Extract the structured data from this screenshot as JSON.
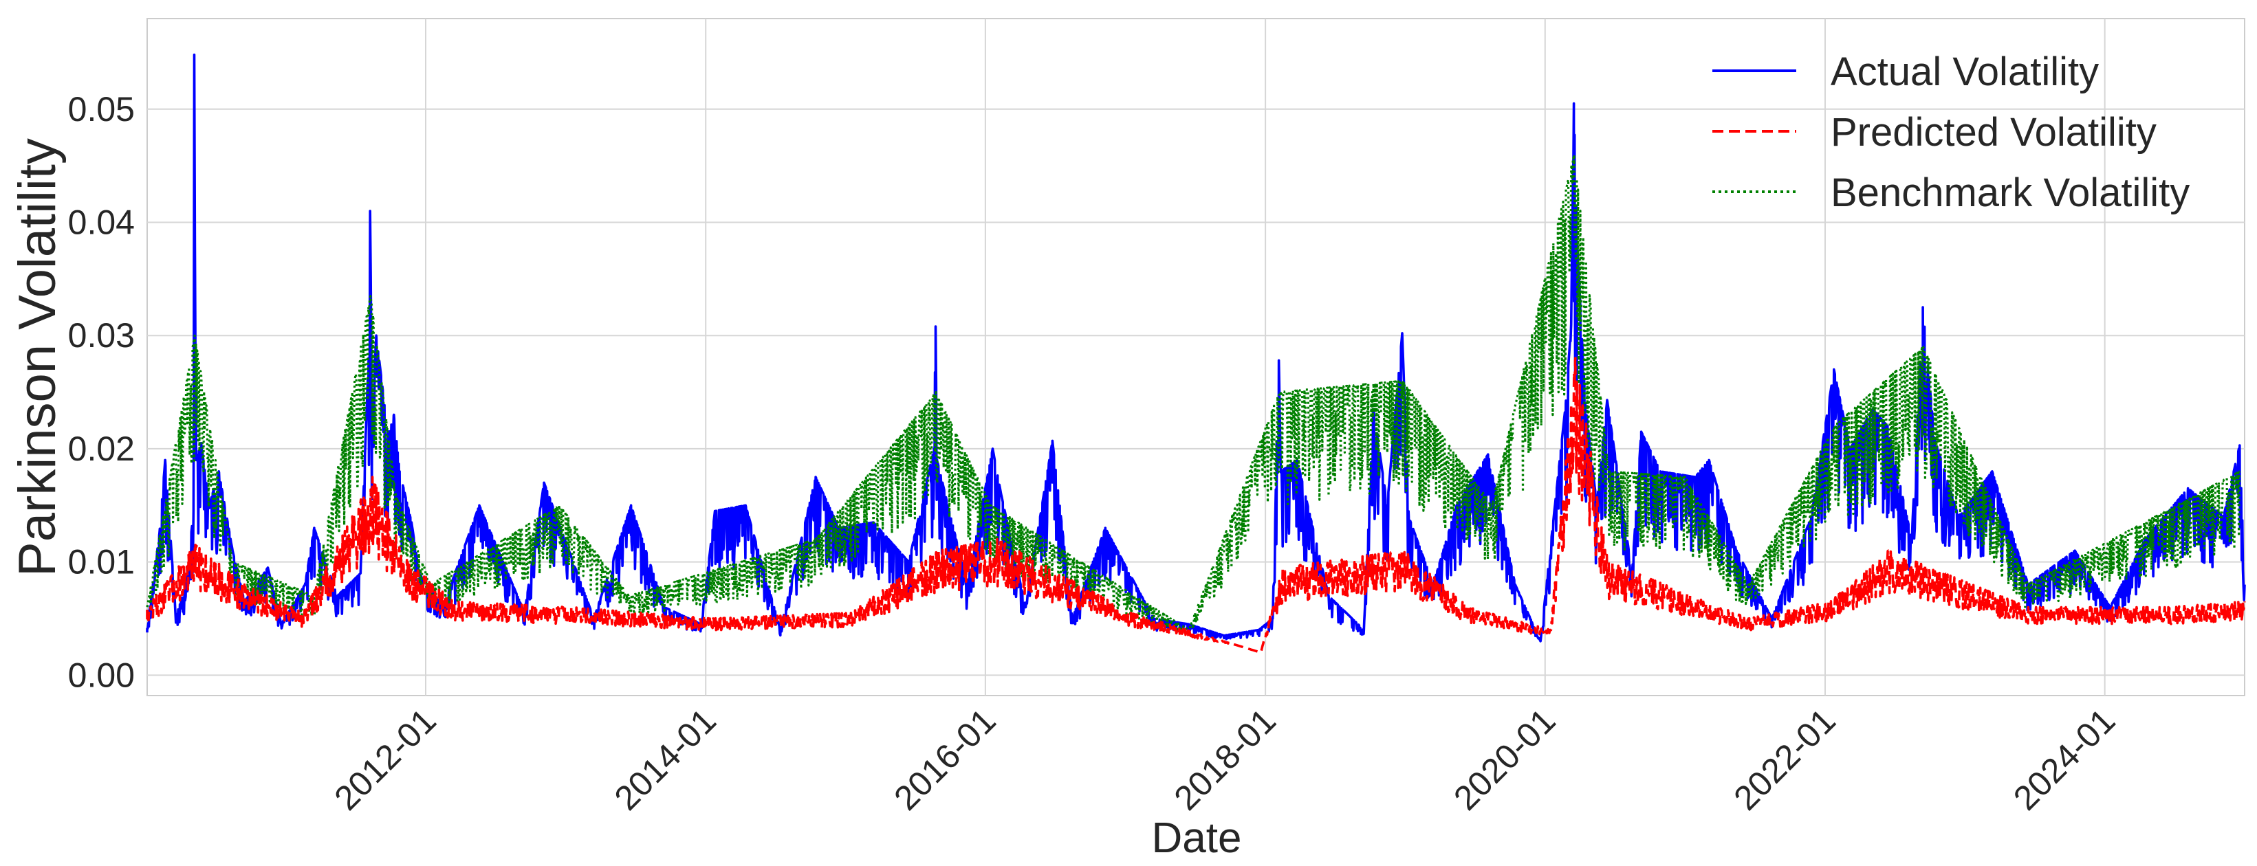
{
  "chart_data": {
    "type": "line",
    "title": "",
    "xlabel": "Date",
    "ylabel": "Parkinson Volatility",
    "x_range": [
      "2010-01-04",
      "2024-12-31"
    ],
    "ylim": [
      -0.0018,
      0.058
    ],
    "x_ticks": [
      "2012-01",
      "2014-01",
      "2016-01",
      "2018-01",
      "2020-01",
      "2022-01",
      "2024-01"
    ],
    "y_ticks": [
      "0.00",
      "0.01",
      "0.02",
      "0.03",
      "0.04",
      "0.05"
    ],
    "grid": true,
    "legend_position": "top-right",
    "series": [
      {
        "name": "Actual Volatility",
        "color": "#0000ff",
        "style": "solid",
        "points": [
          [
            "2010-01-04",
            0.0041
          ],
          [
            "2010-02-05",
            0.0125
          ],
          [
            "2010-02-20",
            0.019
          ],
          [
            "2010-03-20",
            0.0052
          ],
          [
            "2010-04-15",
            0.0078
          ],
          [
            "2010-05-05",
            0.0145
          ],
          [
            "2010-05-07",
            0.0548
          ],
          [
            "2010-05-12",
            0.019
          ],
          [
            "2010-05-25",
            0.0205
          ],
          [
            "2010-06-15",
            0.015
          ],
          [
            "2010-07-10",
            0.018
          ],
          [
            "2010-08-15",
            0.011
          ],
          [
            "2010-09-15",
            0.0065
          ],
          [
            "2010-11-15",
            0.0095
          ],
          [
            "2010-12-20",
            0.0045
          ],
          [
            "2011-02-20",
            0.008
          ],
          [
            "2011-03-16",
            0.013
          ],
          [
            "2011-05-15",
            0.007
          ],
          [
            "2011-07-15",
            0.009
          ],
          [
            "2011-08-05",
            0.028
          ],
          [
            "2011-08-09",
            0.041
          ],
          [
            "2011-08-14",
            0.023
          ],
          [
            "2011-08-25",
            0.03
          ],
          [
            "2011-09-10",
            0.0255
          ],
          [
            "2011-09-25",
            0.021
          ],
          [
            "2011-10-10",
            0.023
          ],
          [
            "2011-10-25",
            0.018
          ],
          [
            "2011-11-25",
            0.0135
          ],
          [
            "2011-12-15",
            0.009
          ],
          [
            "2012-02-15",
            0.006
          ],
          [
            "2012-05-20",
            0.015
          ],
          [
            "2012-06-20",
            0.0125
          ],
          [
            "2012-09-15",
            0.0055
          ],
          [
            "2012-11-05",
            0.017
          ],
          [
            "2013-03-15",
            0.005
          ],
          [
            "2013-06-20",
            0.015
          ],
          [
            "2013-09-15",
            0.006
          ],
          [
            "2013-12-20",
            0.0045
          ],
          [
            "2014-01-25",
            0.0145
          ],
          [
            "2014-04-15",
            0.015
          ],
          [
            "2014-07-15",
            0.004
          ],
          [
            "2014-10-15",
            0.0175
          ],
          [
            "2014-12-15",
            0.013
          ],
          [
            "2015-03-15",
            0.0135
          ],
          [
            "2015-06-15",
            0.01
          ],
          [
            "2015-08-20",
            0.02
          ],
          [
            "2015-08-24",
            0.0308
          ],
          [
            "2015-08-28",
            0.019
          ],
          [
            "2015-09-25",
            0.015
          ],
          [
            "2015-11-15",
            0.008
          ],
          [
            "2016-01-20",
            0.02
          ],
          [
            "2016-02-11",
            0.016
          ],
          [
            "2016-04-15",
            0.006
          ],
          [
            "2016-06-24",
            0.0207
          ],
          [
            "2016-08-15",
            0.005
          ],
          [
            "2016-11-09",
            0.013
          ],
          [
            "2017-03-15",
            0.005
          ],
          [
            "2017-06-15",
            0.0045
          ],
          [
            "2017-09-15",
            0.0035
          ],
          [
            "2017-12-15",
            0.004
          ],
          [
            "2018-01-20",
            0.005
          ],
          [
            "2018-02-05",
            0.0278
          ],
          [
            "2018-02-10",
            0.018
          ],
          [
            "2018-03-25",
            0.019
          ],
          [
            "2018-06-15",
            0.007
          ],
          [
            "2018-09-15",
            0.004
          ],
          [
            "2018-10-10",
            0.0235
          ],
          [
            "2018-11-15",
            0.015
          ],
          [
            "2018-12-24",
            0.0302
          ],
          [
            "2019-01-10",
            0.014
          ],
          [
            "2019-03-15",
            0.008
          ],
          [
            "2019-05-15",
            0.015
          ],
          [
            "2019-08-05",
            0.0195
          ],
          [
            "2019-10-15",
            0.008
          ],
          [
            "2019-12-20",
            0.003
          ],
          [
            "2020-02-24",
            0.024
          ],
          [
            "2020-03-09",
            0.031
          ],
          [
            "2020-03-16",
            0.0505
          ],
          [
            "2020-03-25",
            0.038
          ],
          [
            "2020-04-15",
            0.024
          ],
          [
            "2020-05-15",
            0.015
          ],
          [
            "2020-06-11",
            0.0243
          ],
          [
            "2020-08-15",
            0.009
          ],
          [
            "2020-09-08",
            0.0215
          ],
          [
            "2020-10-28",
            0.018
          ],
          [
            "2021-01-27",
            0.0175
          ],
          [
            "2021-03-04",
            0.019
          ],
          [
            "2021-05-15",
            0.011
          ],
          [
            "2021-08-15",
            0.005
          ],
          [
            "2021-11-26",
            0.014
          ],
          [
            "2022-01-24",
            0.027
          ],
          [
            "2022-03-07",
            0.02
          ],
          [
            "2022-05-05",
            0.0235
          ],
          [
            "2022-06-13",
            0.022
          ],
          [
            "2022-08-15",
            0.012
          ],
          [
            "2022-09-13",
            0.0325
          ],
          [
            "2022-10-13",
            0.021
          ],
          [
            "2022-12-15",
            0.014
          ],
          [
            "2023-03-13",
            0.018
          ],
          [
            "2023-06-15",
            0.008
          ],
          [
            "2023-10-15",
            0.011
          ],
          [
            "2024-01-15",
            0.006
          ],
          [
            "2024-04-15",
            0.012
          ],
          [
            "2024-08-05",
            0.0165
          ],
          [
            "2024-11-06",
            0.014
          ],
          [
            "2024-12-18",
            0.0203
          ],
          [
            "2024-12-31",
            0.008
          ]
        ]
      },
      {
        "name": "Predicted Volatility",
        "color": "#ff0000",
        "style": "dashed",
        "points": [
          [
            "2010-01-04",
            0.006
          ],
          [
            "2010-05-10",
            0.0115
          ],
          [
            "2010-09-15",
            0.008
          ],
          [
            "2011-02-15",
            0.0055
          ],
          [
            "2011-08-15",
            0.0175
          ],
          [
            "2011-11-15",
            0.01
          ],
          [
            "2012-03-15",
            0.0065
          ],
          [
            "2013-01-15",
            0.006
          ],
          [
            "2014-01-15",
            0.005
          ],
          [
            "2015-01-15",
            0.0055
          ],
          [
            "2015-09-01",
            0.011
          ],
          [
            "2016-02-01",
            0.012
          ],
          [
            "2017-01-15",
            0.0055
          ],
          [
            "2017-12-20",
            0.002
          ],
          [
            "2018-02-15",
            0.0095
          ],
          [
            "2018-12-28",
            0.011
          ],
          [
            "2019-06-15",
            0.006
          ],
          [
            "2020-01-15",
            0.004
          ],
          [
            "2020-03-20",
            0.028
          ],
          [
            "2020-06-15",
            0.01
          ],
          [
            "2021-06-15",
            0.005
          ],
          [
            "2022-01-15",
            0.0065
          ],
          [
            "2022-06-15",
            0.011
          ],
          [
            "2023-06-15",
            0.006
          ],
          [
            "2024-06-15",
            0.006
          ],
          [
            "2024-12-31",
            0.0065
          ]
        ]
      },
      {
        "name": "Benchmark Volatility",
        "color": "#008000",
        "style": "dotted",
        "points": [
          [
            "2010-01-04",
            0.006
          ],
          [
            "2010-05-08",
            0.03
          ],
          [
            "2010-08-15",
            0.01
          ],
          [
            "2011-03-15",
            0.007
          ],
          [
            "2011-08-10",
            0.0335
          ],
          [
            "2011-10-15",
            0.016
          ],
          [
            "2012-01-15",
            0.008
          ],
          [
            "2012-12-15",
            0.015
          ],
          [
            "2013-06-15",
            0.007
          ],
          [
            "2014-10-15",
            0.012
          ],
          [
            "2015-08-25",
            0.025
          ],
          [
            "2016-01-15",
            0.015
          ],
          [
            "2017-06-15",
            0.004
          ],
          [
            "2018-02-06",
            0.025
          ],
          [
            "2018-12-26",
            0.026
          ],
          [
            "2019-08-15",
            0.015
          ],
          [
            "2020-03-17",
            0.046
          ],
          [
            "2020-06-15",
            0.018
          ],
          [
            "2020-12-31",
            0.0175
          ],
          [
            "2021-06-15",
            0.008
          ],
          [
            "2022-01-25",
            0.022
          ],
          [
            "2022-09-14",
            0.029
          ],
          [
            "2023-06-15",
            0.008
          ],
          [
            "2024-12-18",
            0.018
          ]
        ]
      }
    ]
  }
}
